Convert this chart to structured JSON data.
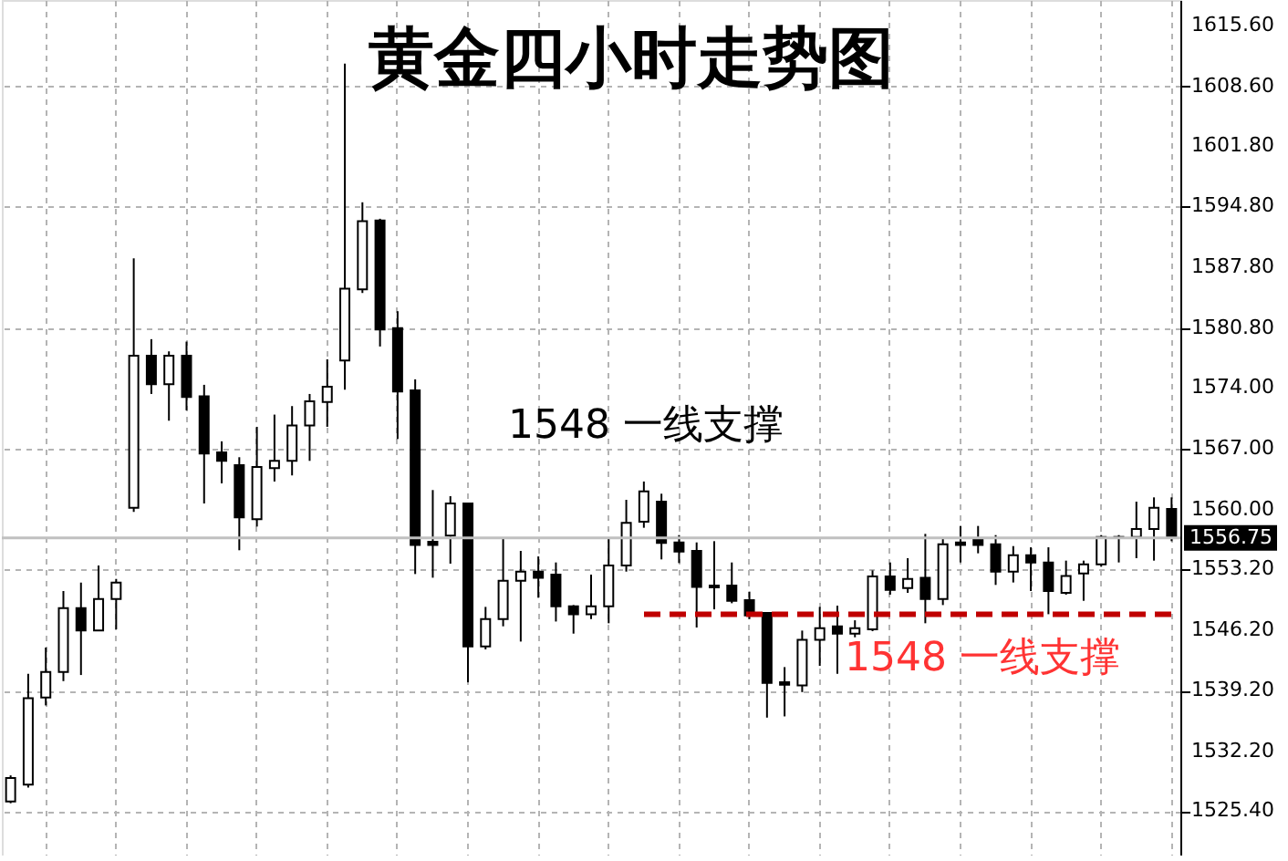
{
  "chart_data": {
    "type": "candlestick",
    "title": "黄金四小时走势图",
    "categories": [
      null,
      null,
      null,
      null,
      null,
      null,
      null,
      null,
      null,
      null,
      null,
      null,
      null,
      null,
      null,
      null,
      null,
      null,
      null,
      null,
      null,
      null,
      null,
      null,
      null,
      null,
      null,
      null,
      null,
      null,
      null,
      null,
      null,
      null,
      null,
      null,
      null,
      null,
      null,
      null,
      null,
      null,
      null,
      null,
      null,
      null,
      null,
      null,
      null,
      null,
      null,
      null,
      null,
      null,
      null,
      null,
      null,
      null,
      null,
      null,
      null,
      null,
      null,
      null,
      null,
      null,
      null
    ],
    "ohlc": [
      [
        1526.5,
        1529.5,
        1526.3,
        1529.2
      ],
      [
        1528.45,
        1541.16,
        1528.1,
        1538.37
      ],
      [
        1538.44,
        1544.17,
        1537.53,
        1541.37
      ],
      [
        1541.37,
        1550.66,
        1540.32,
        1548.7
      ],
      [
        1548.7,
        1551.63,
        1541.02,
        1546.12
      ],
      [
        1546.12,
        1553.59,
        1546.12,
        1549.75
      ],
      [
        1549.75,
        1552.05,
        1546.26,
        1551.63
      ],
      [
        1560.22,
        1588.85,
        1559.73,
        1577.68
      ],
      [
        1577.68,
        1579.57,
        1573.28,
        1574.4
      ],
      [
        1574.4,
        1578.17,
        1570.21,
        1577.68
      ],
      [
        1577.68,
        1579.29,
        1571.4,
        1572.93
      ],
      [
        1573.0,
        1574.33,
        1560.71,
        1566.44
      ],
      [
        1566.58,
        1567.84,
        1563.02,
        1565.6
      ],
      [
        1565.11,
        1566.02,
        1555.34,
        1559.11
      ],
      [
        1558.9,
        1569.51,
        1558.06,
        1564.9
      ],
      [
        1564.76,
        1570.91,
        1563.23,
        1565.6
      ],
      [
        1565.6,
        1571.89,
        1563.93,
        1569.65
      ],
      [
        1569.65,
        1573.28,
        1565.6,
        1572.44
      ],
      [
        1572.37,
        1577.26,
        1569.51,
        1574.12
      ],
      [
        1577.12,
        1611.2,
        1573.77,
        1585.36
      ],
      [
        1585.29,
        1595.28,
        1584.87,
        1593.12
      ],
      [
        1593.19,
        1593.39,
        1578.73,
        1580.69
      ],
      [
        1580.83,
        1582.78,
        1568.11,
        1573.56
      ],
      [
        1573.7,
        1574.96,
        1552.61,
        1555.96
      ],
      [
        1556.31,
        1562.25,
        1552.19,
        1555.96
      ],
      [
        1557.01,
        1561.55,
        1553.8,
        1560.71
      ],
      [
        1560.71,
        1560.71,
        1540.18,
        1544.3
      ],
      [
        1544.3,
        1548.84,
        1543.96,
        1547.45
      ],
      [
        1547.45,
        1556.8,
        1546.61,
        1551.85
      ],
      [
        1551.85,
        1555.27,
        1544.86,
        1552.89
      ],
      [
        1552.89,
        1554.63,
        1549.89,
        1552.19
      ],
      [
        1552.54,
        1553.94,
        1547.16,
        1548.91
      ],
      [
        1548.91,
        1549.05,
        1545.77,
        1548.0
      ],
      [
        1548.0,
        1552.54,
        1547.44,
        1548.91
      ],
      [
        1548.91,
        1556.73,
        1546.96,
        1553.59
      ],
      [
        1553.59,
        1561.13,
        1552.89,
        1558.48
      ],
      [
        1558.62,
        1563.23,
        1557.92,
        1562.11
      ],
      [
        1560.92,
        1561.83,
        1554.29,
        1556.17
      ],
      [
        1556.24,
        1557.08,
        1553.87,
        1555.19
      ],
      [
        1555.26,
        1556.24,
        1546.47,
        1551.12
      ],
      [
        1551.29,
        1556.38,
        1548.56,
        1551.08
      ],
      [
        1551.29,
        1553.94,
        1549.26,
        1549.54
      ],
      [
        1549.61,
        1550.59,
        1547.44,
        1547.86
      ],
      [
        1548.14,
        1548.14,
        1536.13,
        1540.11
      ],
      [
        1540.18,
        1541.93,
        1536.27,
        1539.9
      ],
      [
        1539.83,
        1546.12,
        1539.06,
        1545.07
      ],
      [
        1545.07,
        1548.84,
        1542.07,
        1546.4
      ],
      [
        1546.61,
        1548.98,
        1541.16,
        1545.77
      ],
      [
        1545.77,
        1547.3,
        1545.35,
        1546.4
      ],
      [
        1546.26,
        1553.03,
        1546.05,
        1552.33
      ],
      [
        1552.33,
        1553.94,
        1550.24,
        1550.8
      ],
      [
        1551.01,
        1554.43,
        1550.45,
        1552.05
      ],
      [
        1552.19,
        1557.22,
        1546.96,
        1549.75
      ],
      [
        1549.75,
        1556.73,
        1549.05,
        1556.03
      ],
      [
        1556.24,
        1558.13,
        1553.94,
        1555.96
      ],
      [
        1556.52,
        1558.13,
        1554.99,
        1555.96
      ],
      [
        1556.03,
        1557.08,
        1551.36,
        1552.89
      ],
      [
        1552.89,
        1555.82,
        1551.64,
        1554.78
      ],
      [
        1554.78,
        1555.68,
        1550.66,
        1553.94
      ],
      [
        1553.94,
        1555.68,
        1548.0,
        1550.66
      ],
      [
        1550.45,
        1554.15,
        1550.24,
        1552.4
      ],
      [
        1552.68,
        1554.15,
        1549.54,
        1553.73
      ],
      [
        1553.73,
        1557.08,
        1553.45,
        1556.87
      ],
      [
        1556.73,
        1557.08,
        1553.94,
        1556.87
      ],
      [
        1556.87,
        1560.92,
        1554.43,
        1557.78
      ],
      [
        1557.78,
        1561.41,
        1554.15,
        1560.22
      ],
      [
        1560.08,
        1561.41,
        1556.38,
        1556.75
      ]
    ],
    "ylim": [
      1520.3,
      1618.5
    ],
    "yticks": [
      {
        "value": 1615.6,
        "label": "1615.60"
      },
      {
        "value": 1608.6,
        "label": "1608.60"
      },
      {
        "value": 1601.8,
        "label": "1601.80"
      },
      {
        "value": 1594.8,
        "label": "1594.80"
      },
      {
        "value": 1587.8,
        "label": "1587.80"
      },
      {
        "value": 1580.8,
        "label": "1580.80"
      },
      {
        "value": 1574,
        "label": "1574.00"
      },
      {
        "value": 1567,
        "label": "1567.00"
      },
      {
        "value": 1560,
        "label": "1560.00"
      },
      {
        "value": 1553.2,
        "label": "1553.20"
      },
      {
        "value": 1546.2,
        "label": "1546.20"
      },
      {
        "value": 1539.2,
        "label": "1539.20"
      },
      {
        "value": 1532.2,
        "label": "1532.20"
      },
      {
        "value": 1525.4,
        "label": "1525.40"
      }
    ],
    "ref_lines": [
      {
        "axis": "y",
        "value": 1556.75,
        "label": "1556.75",
        "color": "#c0c0c0",
        "line_style": "solid"
      },
      {
        "axis": "y",
        "value": 1548,
        "label": "1548  一线支撑",
        "color": "#c00000",
        "line_style": "dashed"
      }
    ],
    "annotations": [
      "1548  一线支撑"
    ],
    "grid": true
  }
}
